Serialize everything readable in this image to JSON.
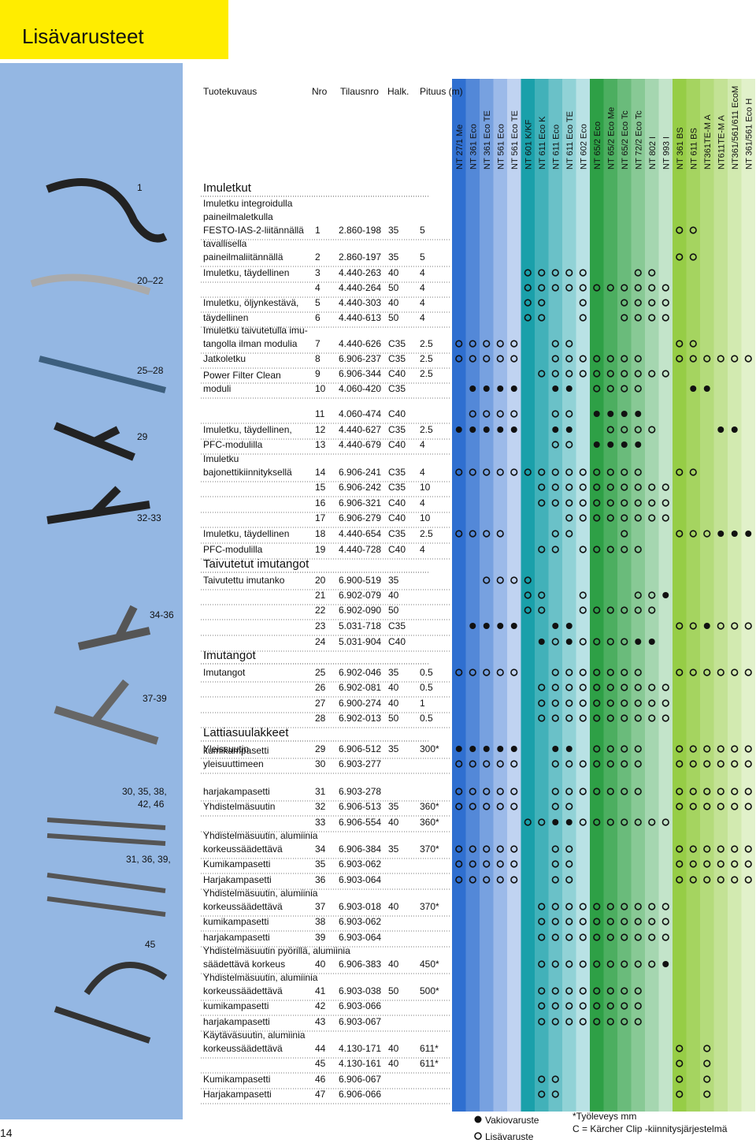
{
  "header": {
    "title": "Lisävarusteet",
    "columns": [
      "Tuotekuvaus",
      "Nro",
      "Tilausnro",
      "Halk.",
      "Pituus (m)"
    ]
  },
  "models": [
    "NT 27/1 Me",
    "NT 361 Eco",
    "NT 361 Eco TE",
    "NT 561 Eco",
    "NT 561 Eco TE",
    "NT 601 K/KF",
    "NT 611 Eco K",
    "NT 611 Eco",
    "NT 611 Eco TE",
    "NT 602 Eco",
    "NT 65/2 Eco",
    "NT 65/2 Eco Me",
    "NT 65/2 Eco Tc",
    "NT 72/2 Eco Tc",
    "NT 802 I",
    "NT 993 I",
    "NT 361 BS",
    "NT 611 BS",
    "NT361TE-M A",
    "NT611TE-M A",
    "NT361/561/611 EcoM",
    "NT 361/561 Eco H"
  ],
  "sections": [
    "Imuletkut",
    "Taivutetut imutangot",
    "Imutangot",
    "Lattiasuulakkeet"
  ],
  "image_labels": [
    [
      "1"
    ],
    [
      "20–22"
    ],
    [
      "25–28"
    ],
    [
      "29"
    ],
    [
      "32-33"
    ],
    [
      "34-36"
    ],
    [
      "37-39"
    ],
    [
      "30, 35, 38,",
      "42, 46"
    ],
    [
      "31, 36, 39,"
    ],
    [
      "45"
    ]
  ],
  "rows": [
    {
      "desc": [
        "Imuletku integroidulla",
        "paineilmaletkulla",
        "FESTO-IAS-2-liitännällä"
      ],
      "nro": "1",
      "tilausnro": "2.860-198",
      "halk": "35",
      "pituus": "5",
      "open": [
        16,
        17
      ],
      "filled": []
    },
    {
      "desc": [
        "tavallisella",
        "paineilmaliitännällä"
      ],
      "nro": "2",
      "tilausnro": "2.860-197",
      "halk": "35",
      "pituus": "5",
      "open": [
        16,
        17
      ],
      "filled": []
    },
    {
      "desc": [
        "Imuletku, täydellinen"
      ],
      "nro": "3",
      "tilausnro": "4.440-263",
      "halk": "40",
      "pituus": "4",
      "open": [
        5,
        6,
        7,
        8,
        9,
        13,
        14
      ],
      "filled": []
    },
    {
      "desc": [],
      "nro": "4",
      "tilausnro": "4.440-264",
      "halk": "50",
      "pituus": "4",
      "open": [
        5,
        6,
        7,
        8,
        9,
        10,
        11,
        12,
        13,
        14,
        15
      ],
      "filled": []
    },
    {
      "desc": [
        "Imuletku, öljynkestävä,"
      ],
      "nro": "5",
      "tilausnro": "4.440-303",
      "halk": "40",
      "pituus": "4",
      "open": [
        5,
        6,
        9,
        12,
        13,
        14,
        15
      ],
      "filled": []
    },
    {
      "desc": [
        "täydellinen"
      ],
      "nro": "6",
      "tilausnro": "4.440-613",
      "halk": "50",
      "pituus": "4",
      "open": [
        5,
        6,
        9,
        12,
        13,
        14,
        15
      ],
      "filled": []
    },
    {
      "desc": [
        "Imuletku taivutetulla imu-",
        "tangolla ilman modulia"
      ],
      "nro": "7",
      "tilausnro": "4.440-626",
      "halk": "C35",
      "pituus": "2.5",
      "open": [
        0,
        1,
        2,
        3,
        4,
        7,
        8,
        16,
        17
      ],
      "filled": []
    },
    {
      "desc": [
        "Jatkoletku"
      ],
      "nro": "8",
      "tilausnro": "6.906-237",
      "halk": "C35",
      "pituus": "2.5",
      "open": [
        0,
        1,
        2,
        3,
        4,
        7,
        8,
        9,
        10,
        11,
        12,
        13,
        16,
        17,
        18,
        19,
        20,
        21
      ],
      "filled": []
    },
    {
      "desc": [],
      "nro": "9",
      "tilausnro": "6.906-344",
      "halk": "C40",
      "pituus": "2.5",
      "open": [
        6,
        7,
        8,
        9,
        10,
        11,
        12,
        13,
        14,
        15
      ],
      "filled": []
    },
    {
      "desc": [
        "Power Filter Clean",
        "moduli"
      ],
      "nro": "10",
      "tilausnro": "4.060-420",
      "halk": "C35",
      "open": [
        10,
        11,
        12,
        13
      ],
      "filled": [
        1,
        2,
        3,
        4,
        7,
        8,
        17,
        18
      ]
    },
    {
      "desc": [],
      "nro": "11",
      "tilausnro": "4.060-474",
      "halk": "C40",
      "open": [
        1,
        2,
        3,
        4,
        7,
        8
      ],
      "filled": [
        10,
        11,
        12,
        13
      ]
    },
    {
      "desc": [
        "Imuletku, täydellinen,"
      ],
      "nro": "12",
      "tilausnro": "4.440-627",
      "halk": "C35",
      "pituus": "2.5",
      "open": [
        11,
        12,
        13,
        14
      ],
      "filled": [
        0,
        1,
        2,
        3,
        4,
        7,
        8,
        19,
        20
      ]
    },
    {
      "desc": [
        "PFC-modulilla"
      ],
      "nro": "13",
      "tilausnro": "4.440-679",
      "halk": "C40",
      "pituus": "4",
      "open": [
        7,
        8
      ],
      "filled": [
        10,
        11,
        12,
        13
      ]
    },
    {
      "desc": [
        "Imuletku",
        "bajonettikiinnityksellä"
      ],
      "nro": "14",
      "tilausnro": "6.906-241",
      "halk": "C35",
      "pituus": "4",
      "open": [
        0,
        1,
        2,
        3,
        4,
        5,
        6,
        7,
        8,
        9,
        10,
        11,
        12,
        13,
        16,
        17
      ],
      "filled": []
    },
    {
      "desc": [],
      "nro": "15",
      "tilausnro": "6.906-242",
      "halk": "C35",
      "pituus": "10",
      "open": [
        6,
        7,
        8,
        9,
        10,
        11,
        12,
        13,
        14,
        15
      ],
      "filled": []
    },
    {
      "desc": [],
      "nro": "16",
      "tilausnro": "6.906-321",
      "halk": "C40",
      "pituus": "4",
      "open": [
        6,
        7,
        8,
        9,
        10,
        11,
        12,
        13,
        14,
        15
      ],
      "filled": []
    },
    {
      "desc": [],
      "nro": "17",
      "tilausnro": "6.906-279",
      "halk": "C40",
      "pituus": "10",
      "open": [
        8,
        9,
        10,
        11,
        12,
        13,
        14,
        15
      ],
      "filled": []
    },
    {
      "desc": [
        "Imuletku, täydellinen"
      ],
      "nro": "18",
      "tilausnro": "4.440-654",
      "halk": "C35",
      "pituus": "2.5",
      "open": [
        0,
        1,
        2,
        3,
        7,
        8,
        12,
        16,
        17,
        18
      ],
      "filled": [
        19,
        20,
        21
      ]
    },
    {
      "desc": [
        "PFC-modulilla"
      ],
      "nro": "19",
      "tilausnro": "4.440-728",
      "halk": "C40",
      "pituus": "4",
      "open": [
        6,
        7,
        9,
        10,
        11,
        12,
        13
      ],
      "filled": []
    },
    {
      "desc": [
        "Taivutettu imutanko"
      ],
      "nro": "20",
      "tilausnro": "6.900-519",
      "halk": "35",
      "open": [
        2,
        3,
        4,
        5
      ],
      "filled": [],
      "section": 1
    },
    {
      "desc": [],
      "nro": "21",
      "tilausnro": "6.902-079",
      "halk": "40",
      "open": [
        5,
        6,
        9,
        13,
        14
      ],
      "filled": [
        15
      ]
    },
    {
      "desc": [],
      "nro": "22",
      "tilausnro": "6.902-090",
      "halk": "50",
      "open": [
        5,
        6,
        9,
        10,
        11,
        12,
        13,
        14
      ],
      "filled": []
    },
    {
      "desc": [],
      "nro": "23",
      "tilausnro": "5.031-718",
      "halk": "C35",
      "open": [
        16,
        17,
        19,
        20,
        21
      ],
      "filled": [
        1,
        2,
        3,
        4,
        7,
        8,
        18
      ]
    },
    {
      "desc": [],
      "nro": "24",
      "tilausnro": "5.031-904",
      "halk": "C40",
      "open": [
        7,
        9,
        10,
        11,
        12
      ],
      "filled": [
        6,
        8,
        13,
        14
      ]
    },
    {
      "desc": [
        "Imutangot"
      ],
      "nro": "25",
      "tilausnro": "6.902-046",
      "halk": "35",
      "pituus": "0.5",
      "open": [
        0,
        1,
        2,
        3,
        4,
        7,
        8,
        9,
        10,
        11,
        12,
        13,
        16,
        17,
        18,
        19,
        20,
        21
      ],
      "filled": [],
      "section": 2
    },
    {
      "desc": [],
      "nro": "26",
      "tilausnro": "6.902-081",
      "halk": "40",
      "pituus": "0.5",
      "open": [
        6,
        7,
        8,
        9,
        10,
        11,
        12,
        13,
        14,
        15
      ],
      "filled": []
    },
    {
      "desc": [],
      "nro": "27",
      "tilausnro": "6.900-274",
      "halk": "40",
      "pituus": "1",
      "open": [
        6,
        7,
        8,
        9,
        10,
        11,
        12,
        13,
        14,
        15
      ],
      "filled": []
    },
    {
      "desc": [],
      "nro": "28",
      "tilausnro": "6.902-013",
      "halk": "50",
      "pituus": "0.5",
      "open": [
        6,
        7,
        8,
        9,
        10,
        11,
        12,
        13,
        14,
        15
      ],
      "filled": []
    },
    {
      "desc": [
        "Yleissuutin"
      ],
      "nro": "29",
      "tilausnro": "6.906-512",
      "halk": "35",
      "pituus": "300*",
      "open": [
        10,
        11,
        12,
        13,
        16,
        17,
        18,
        19,
        20,
        21
      ],
      "filled": [
        0,
        1,
        2,
        3,
        4,
        7,
        8
      ],
      "section": 3
    },
    {
      "desc": [
        "kumikampasetti",
        "yleisuuttimeen"
      ],
      "nro": "30",
      "tilausnro": "6.903-277",
      "open": [
        0,
        1,
        2,
        3,
        4,
        7,
        8,
        9,
        10,
        11,
        12,
        13,
        16,
        17,
        18,
        19,
        20,
        21
      ],
      "filled": []
    },
    {
      "desc": [
        "harjakampasetti"
      ],
      "nro": "31",
      "tilausnro": "6.903-278",
      "open": [
        0,
        1,
        2,
        3,
        4,
        7,
        8,
        9,
        10,
        11,
        12,
        13,
        16,
        17,
        18,
        19,
        20,
        21
      ],
      "filled": []
    },
    {
      "desc": [
        "Yhdistelmäsuutin"
      ],
      "nro": "32",
      "tilausnro": "6.906-513",
      "halk": "35",
      "pituus": "360*",
      "open": [
        0,
        1,
        2,
        3,
        4,
        7,
        8,
        16,
        17,
        18,
        19,
        20,
        21
      ],
      "filled": []
    },
    {
      "desc": [],
      "nro": "33",
      "tilausnro": "6.906-554",
      "halk": "40",
      "pituus": "360*",
      "open": [
        5,
        6,
        9,
        10,
        11,
        12,
        13,
        14,
        15
      ],
      "filled": [
        7,
        8
      ]
    },
    {
      "desc": [
        "Yhdistelmäsuutin, alumiinia",
        "korkeussäädettävä"
      ],
      "nro": "34",
      "tilausnro": "6.906-384",
      "halk": "35",
      "pituus": "370*",
      "open": [
        0,
        1,
        2,
        3,
        4,
        7,
        8,
        16,
        17,
        18,
        19,
        20,
        21
      ],
      "filled": []
    },
    {
      "desc": [
        "Kumikampasetti"
      ],
      "nro": "35",
      "tilausnro": "6.903-062",
      "open": [
        0,
        1,
        2,
        3,
        4,
        7,
        8,
        16,
        17,
        18,
        19,
        20,
        21
      ],
      "filled": []
    },
    {
      "desc": [
        "Harjakampasetti"
      ],
      "nro": "36",
      "tilausnro": "6.903-064",
      "open": [
        0,
        1,
        2,
        3,
        4,
        7,
        8,
        16,
        17,
        18,
        19,
        20,
        21
      ],
      "filled": []
    },
    {
      "desc": [
        "Yhdistelmäsuutin, alumiinia",
        "korkeussäädettävä"
      ],
      "nro": "37",
      "tilausnro": "6.903-018",
      "halk": "40",
      "pituus": "370*",
      "open": [
        6,
        7,
        8,
        9,
        10,
        11,
        12,
        13,
        14,
        15
      ],
      "filled": []
    },
    {
      "desc": [
        "kumikampasetti"
      ],
      "nro": "38",
      "tilausnro": "6.903-062",
      "open": [
        6,
        7,
        8,
        9,
        10,
        11,
        12,
        13,
        14,
        15
      ],
      "filled": []
    },
    {
      "desc": [
        "harjakampasetti"
      ],
      "nro": "39",
      "tilausnro": "6.903-064",
      "open": [
        6,
        7,
        8,
        9,
        10,
        11,
        12,
        13,
        14,
        15
      ],
      "filled": []
    },
    {
      "desc": [
        "Yhdistelmäsuutin pyörillä, alumiinia",
        "säädettävä korkeus"
      ],
      "nro": "40",
      "tilausnro": "6.906-383",
      "halk": "40",
      "pituus": "450*",
      "open": [
        6,
        7,
        8,
        9,
        10,
        11,
        12,
        13,
        14
      ],
      "filled": [
        15
      ]
    },
    {
      "desc": [
        "Yhdistelmäsuutin, alumiinia",
        "korkeussäädettävä"
      ],
      "nro": "41",
      "tilausnro": "6.903-038",
      "halk": "50",
      "pituus": "500*",
      "open": [
        6,
        7,
        8,
        9,
        10,
        11,
        12,
        13
      ],
      "filled": []
    },
    {
      "desc": [
        "kumikampasetti"
      ],
      "nro": "42",
      "tilausnro": "6.903-066",
      "open": [
        6,
        7,
        8,
        9,
        10,
        11,
        12,
        13
      ],
      "filled": []
    },
    {
      "desc": [
        "harjakampasetti"
      ],
      "nro": "43",
      "tilausnro": "6.903-067",
      "open": [
        6,
        7,
        8,
        9,
        10,
        11,
        12,
        13
      ],
      "filled": []
    },
    {
      "desc": [
        "Käytäväsuutin, alumiinia",
        "korkeussäädettävä"
      ],
      "nro": "44",
      "tilausnro": "4.130-171",
      "halk": "40",
      "pituus": "611*",
      "open": [
        16,
        18
      ],
      "filled": []
    },
    {
      "desc": [],
      "nro": "45",
      "tilausnro": "4.130-161",
      "halk": "40",
      "pituus": "611*",
      "open": [
        16,
        18
      ],
      "filled": []
    },
    {
      "desc": [
        "Kumikampasetti"
      ],
      "nro": "46",
      "tilausnro": "6.906-067",
      "open": [
        6,
        7,
        16,
        18
      ],
      "filled": []
    },
    {
      "desc": [
        "Harjakampasetti"
      ],
      "nro": "47",
      "tilausnro": "6.906-066",
      "open": [
        6,
        7,
        16,
        18
      ],
      "filled": []
    }
  ],
  "legend": {
    "standard": "Vakiovaruste",
    "accessory": "Lisävaruste"
  },
  "notes": [
    "*Työleveys mm",
    "C = Kärcher Clip -kiinnitysjärjestelmä"
  ],
  "page_number": "14"
}
